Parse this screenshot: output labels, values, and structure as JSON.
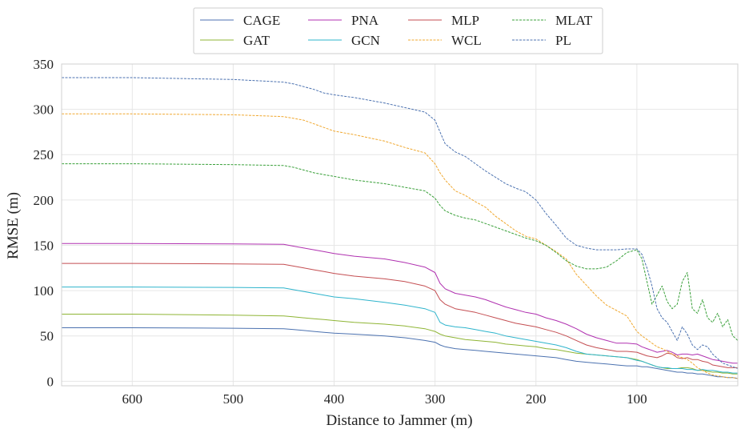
{
  "chart_data": {
    "type": "line",
    "title": "",
    "xlabel": "Distance to Jammer (m)",
    "ylabel": "RMSE (m)",
    "xlim": [
      670,
      0
    ],
    "ylim": [
      -5,
      350
    ],
    "xticks": [
      600,
      500,
      400,
      300,
      200,
      100
    ],
    "yticks": [
      0,
      50,
      100,
      150,
      200,
      250,
      300,
      350
    ],
    "grid": true,
    "legend_position": "top-center",
    "x": [
      670,
      600,
      500,
      450,
      440,
      430,
      420,
      410,
      400,
      380,
      350,
      330,
      310,
      300,
      295,
      290,
      280,
      270,
      260,
      250,
      240,
      230,
      220,
      210,
      200,
      190,
      180,
      170,
      160,
      150,
      140,
      130,
      120,
      110,
      100,
      95,
      90,
      85,
      80,
      75,
      70,
      65,
      60,
      55,
      50,
      45,
      40,
      35,
      30,
      25,
      20,
      15,
      10,
      5,
      0
    ],
    "series": [
      {
        "name": "CAGE",
        "color": "#4c72b0",
        "dash": "solid",
        "values": [
          59,
          59,
          58.5,
          58,
          57,
          56,
          55,
          54,
          53,
          52,
          50,
          48,
          45,
          43,
          40,
          38,
          36,
          35,
          34,
          33,
          32,
          31,
          30,
          29,
          28,
          27,
          26,
          24,
          22,
          21,
          20,
          19,
          18,
          17,
          17,
          16,
          16,
          15,
          14,
          13,
          12,
          11,
          10,
          10,
          9,
          9,
          8,
          8,
          7,
          6,
          5,
          5,
          4,
          4,
          3
        ]
      },
      {
        "name": "GAT",
        "color": "#8fb535",
        "dash": "solid",
        "values": [
          74,
          74,
          73,
          72,
          71,
          70,
          69,
          68,
          67,
          65,
          63,
          61,
          58,
          55,
          52,
          50,
          48,
          46,
          45,
          44,
          43,
          41,
          40,
          39,
          38,
          36,
          35,
          33,
          31,
          30,
          29,
          28,
          27,
          26,
          24,
          22,
          20,
          18,
          16,
          15,
          14,
          14,
          14,
          15,
          15,
          14,
          12,
          12,
          11,
          10,
          10,
          9,
          9,
          8,
          8
        ]
      },
      {
        "name": "PNA",
        "color": "#b031b0",
        "dash": "solid",
        "values": [
          152,
          152,
          151.5,
          151,
          149,
          147,
          145,
          143,
          141,
          138,
          135,
          131,
          126,
          120,
          108,
          102,
          97,
          95,
          93,
          90,
          86,
          82,
          79,
          76,
          74,
          70,
          67,
          63,
          58,
          52,
          48,
          45,
          42,
          42,
          41,
          38,
          36,
          34,
          32,
          33,
          34,
          32,
          29,
          30,
          30,
          29,
          30,
          28,
          26,
          24,
          23,
          22,
          21,
          20,
          20
        ]
      },
      {
        "name": "GCN",
        "color": "#2eb4cc",
        "dash": "solid",
        "values": [
          104,
          104,
          103.5,
          103,
          101,
          99,
          97,
          95,
          93,
          91,
          87,
          84,
          80,
          76,
          65,
          62,
          60,
          59,
          57,
          55,
          53,
          50,
          48,
          46,
          44,
          42,
          40,
          37,
          33,
          30,
          29,
          28,
          27,
          26,
          23,
          22,
          20,
          18,
          16,
          15,
          15,
          14,
          14,
          14,
          13,
          13,
          12,
          13,
          12,
          12,
          11,
          10,
          10,
          9,
          9
        ]
      },
      {
        "name": "MLP",
        "color": "#c44e52",
        "dash": "solid",
        "values": [
          130,
          130,
          129.5,
          129,
          127,
          125,
          123,
          121,
          119,
          116,
          113,
          110,
          105,
          100,
          90,
          85,
          80,
          78,
          76,
          73,
          70,
          67,
          64,
          62,
          60,
          57,
          54,
          50,
          45,
          40,
          37,
          35,
          33,
          33,
          32,
          30,
          28,
          27,
          26,
          28,
          31,
          30,
          26,
          25,
          26,
          24,
          24,
          22,
          21,
          18,
          17,
          16,
          15,
          15,
          15
        ]
      },
      {
        "name": "WCL",
        "color": "#f0a830",
        "dash": "dashed",
        "values": [
          295,
          295,
          294,
          292,
          290,
          288,
          284,
          280,
          276,
          272,
          265,
          258,
          252,
          240,
          230,
          222,
          210,
          205,
          198,
          192,
          182,
          174,
          166,
          160,
          157,
          150,
          143,
          135,
          118,
          106,
          94,
          84,
          78,
          72,
          55,
          50,
          46,
          42,
          38,
          36,
          33,
          30,
          28,
          26,
          24,
          20,
          15,
          12,
          9,
          7,
          6,
          5,
          4,
          4,
          3
        ]
      },
      {
        "name": "MLAT",
        "color": "#3aa03a",
        "dash": "dashed",
        "values": [
          240,
          240,
          239,
          238,
          236,
          233,
          230,
          228,
          226,
          222,
          218,
          214,
          210,
          202,
          194,
          188,
          183,
          180,
          178,
          174,
          170,
          166,
          162,
          158,
          155,
          150,
          142,
          133,
          127,
          124,
          124,
          126,
          133,
          142,
          145,
          135,
          110,
          85,
          95,
          105,
          88,
          80,
          85,
          110,
          120,
          80,
          75,
          90,
          70,
          65,
          75,
          60,
          68,
          50,
          45
        ]
      },
      {
        "name": "PL",
        "color": "#4c72b0",
        "dash": "dashed",
        "values": [
          335,
          335,
          333,
          330,
          328,
          325,
          322,
          318,
          316,
          313,
          307,
          302,
          297,
          288,
          275,
          262,
          253,
          248,
          240,
          232,
          225,
          218,
          213,
          209,
          200,
          185,
          172,
          158,
          150,
          147,
          145,
          145,
          145,
          146,
          146,
          140,
          125,
          105,
          80,
          70,
          65,
          55,
          45,
          60,
          52,
          40,
          35,
          40,
          38,
          30,
          25,
          20,
          18,
          16,
          14
        ]
      }
    ]
  }
}
